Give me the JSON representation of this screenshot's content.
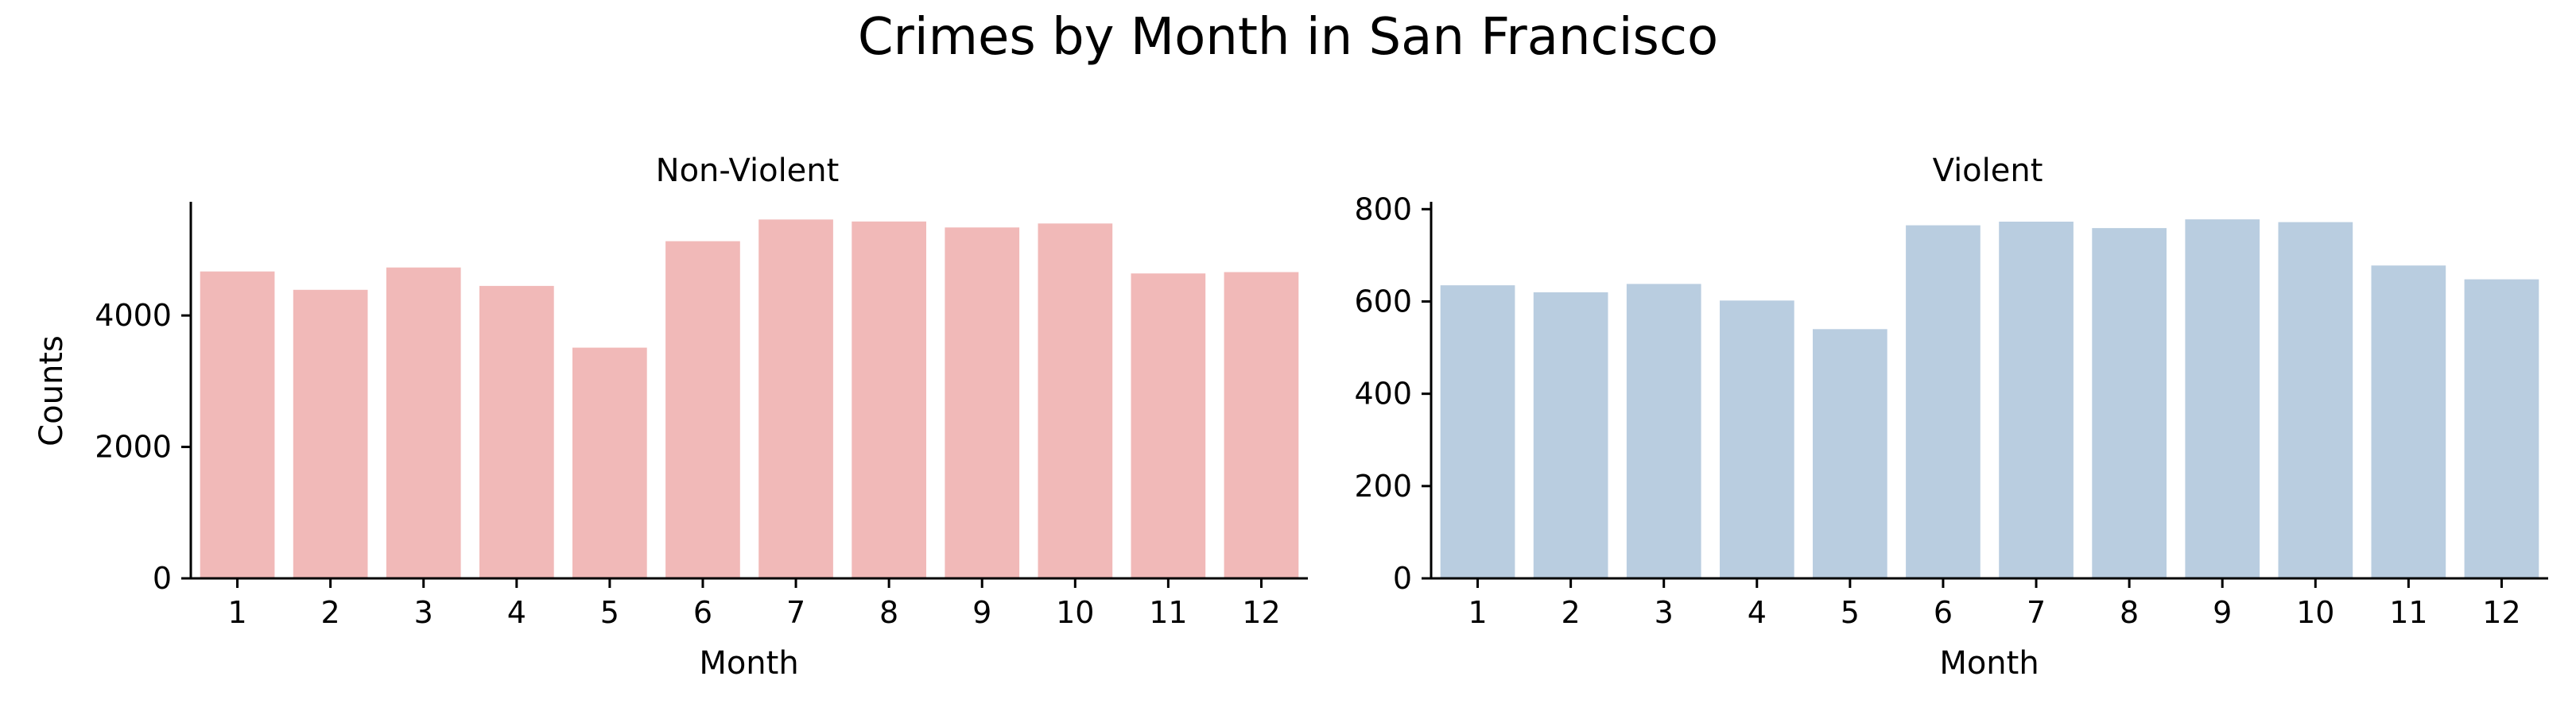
{
  "figure": {
    "title": "Crimes by Month in San Francisco"
  },
  "chart_data": [
    {
      "type": "bar",
      "title": "Non-Violent",
      "xlabel": "Month",
      "ylabel": "Counts",
      "categories": [
        "1",
        "2",
        "3",
        "4",
        "5",
        "6",
        "7",
        "8",
        "9",
        "10",
        "11",
        "12"
      ],
      "values": [
        4670,
        4390,
        4730,
        4450,
        3510,
        5130,
        5460,
        5430,
        5340,
        5400,
        4640,
        4660
      ],
      "ylim": [
        0,
        5730
      ],
      "yticks": [
        0,
        2000,
        4000
      ],
      "ytick_labels": [
        "0",
        "2000",
        "4000"
      ],
      "color": "#f1b9b8",
      "grid": false
    },
    {
      "type": "bar",
      "title": "Violent",
      "xlabel": "Month",
      "ylabel": "",
      "categories": [
        "1",
        "2",
        "3",
        "4",
        "5",
        "6",
        "7",
        "8",
        "9",
        "10",
        "11",
        "12"
      ],
      "values": [
        635,
        620,
        638,
        602,
        540,
        765,
        773,
        759,
        778,
        772,
        678,
        648
      ],
      "ylim": [
        0,
        816
      ],
      "yticks": [
        0,
        200,
        400,
        600,
        800
      ],
      "ytick_labels": [
        "0",
        "200",
        "400",
        "600",
        "800"
      ],
      "color": "#b9cde0",
      "grid": false
    }
  ]
}
